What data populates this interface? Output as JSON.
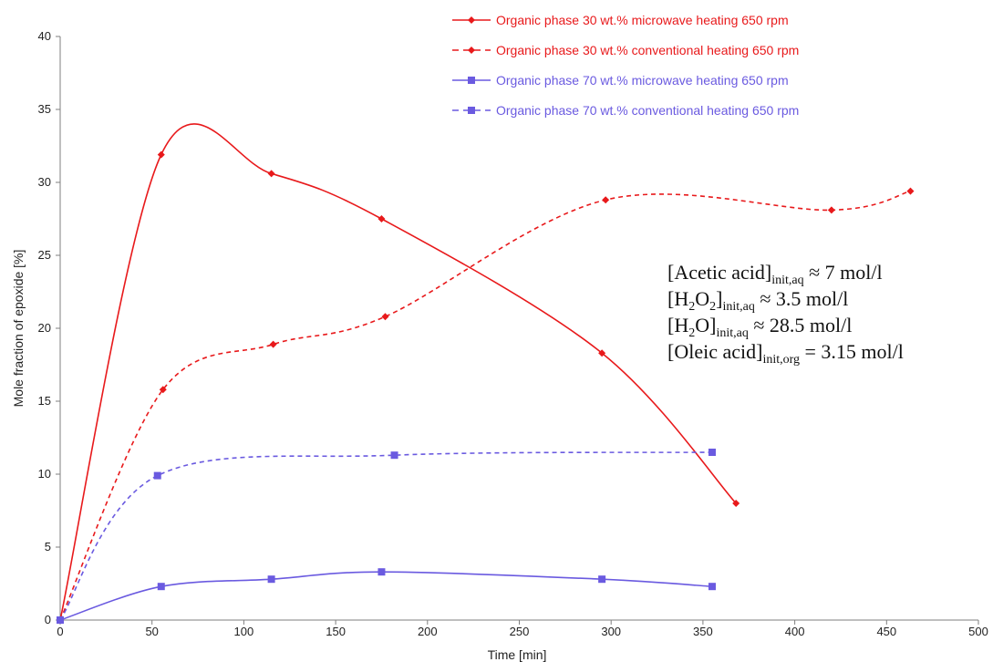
{
  "chart_data": {
    "type": "line",
    "xlabel": "Time [min]",
    "ylabel": "Mole fraction of epoxide [%]",
    "xlim": [
      0,
      500
    ],
    "ylim": [
      0,
      40
    ],
    "xticks": [
      "0",
      "50",
      "100",
      "150",
      "200",
      "250",
      "300",
      "350",
      "400",
      "450",
      "500"
    ],
    "yticks": [
      "0",
      "5",
      "10",
      "15",
      "20",
      "25",
      "30",
      "35",
      "40"
    ],
    "grid": false,
    "legend_position": "top-right",
    "series": [
      {
        "name": "Organic phase 30 wt.% microwave heating 650 rpm",
        "color": "#e8191b",
        "dash": "solid",
        "marker": "diamond",
        "x": [
          0,
          55,
          115,
          175,
          295,
          368
        ],
        "y": [
          0,
          31.9,
          30.6,
          27.5,
          18.3,
          8.0
        ]
      },
      {
        "name": "Organic phase 30 wt.% conventional heating 650 rpm",
        "color": "#e8191b",
        "dash": "dashed",
        "marker": "diamond",
        "x": [
          0,
          56,
          116,
          177,
          297,
          420,
          463
        ],
        "y": [
          0,
          15.8,
          18.9,
          20.8,
          28.8,
          28.1,
          29.4
        ]
      },
      {
        "name": "Organic phase 70 wt.% microwave heating 650 rpm",
        "color": "#6a5ae0",
        "dash": "solid",
        "marker": "square",
        "x": [
          0,
          55,
          115,
          175,
          295,
          355
        ],
        "y": [
          0,
          2.3,
          2.8,
          3.3,
          2.8,
          2.3
        ]
      },
      {
        "name": "Organic phase 70 wt.% conventional heating 650 rpm",
        "color": "#6a5ae0",
        "dash": "dashed",
        "marker": "square",
        "x": [
          0,
          53,
          182,
          355
        ],
        "y": [
          0,
          9.9,
          11.3,
          11.5
        ]
      }
    ],
    "annotation": {
      "lines": [
        {
          "base": "[Acetic acid]",
          "sub": "init,aq",
          "rest": " ≈  7 mol/l"
        },
        {
          "base": "[H",
          "sub": "2",
          "mid": "O",
          "sub2": "2",
          "base2": "]",
          "sub3": "init,aq",
          "rest": " ≈ 3.5 mol/l"
        },
        {
          "base": "[H",
          "sub": "2",
          "mid": "O]",
          "sub3": "init,aq",
          "rest": " ≈ 28.5 mol/l"
        },
        {
          "base": "[Oleic acid]",
          "sub": "init,org",
          "rest": " = 3.15 mol/l"
        }
      ]
    }
  }
}
